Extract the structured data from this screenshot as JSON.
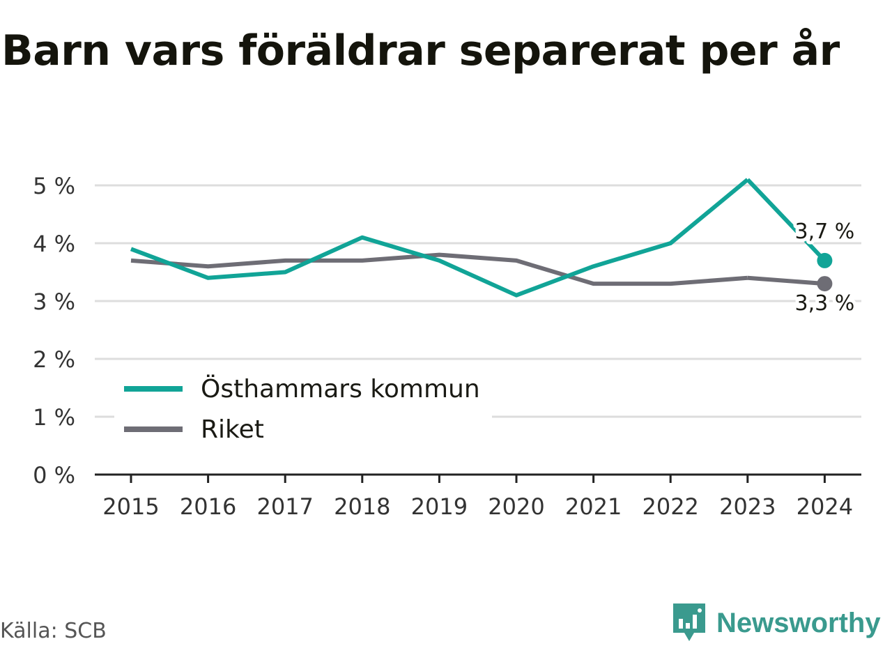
{
  "title": "Barn vars föräldrar separerat per år",
  "source": "Källa: SCB",
  "brand": "Newsworthy",
  "colors": {
    "teal": "#11a497",
    "gray": "#6e6d75",
    "grid": "#dddddd",
    "axis": "#222222",
    "brand": "#3a9a8e"
  },
  "chart_data": {
    "type": "line",
    "x": [
      "2015",
      "2016",
      "2017",
      "2018",
      "2019",
      "2020",
      "2021",
      "2022",
      "2023",
      "2024"
    ],
    "ylim": [
      0,
      5
    ],
    "yticks": [
      0,
      1,
      2,
      3,
      4,
      5
    ],
    "ytick_labels": [
      "0 %",
      "1 %",
      "2 %",
      "3 %",
      "4 %",
      "5 %"
    ],
    "grid": true,
    "legend_position": "bottom-left",
    "series": [
      {
        "name": "Östhammars kommun",
        "color": "#11a497",
        "values": [
          3.9,
          3.4,
          3.5,
          4.1,
          3.7,
          3.1,
          3.6,
          4.0,
          5.1,
          3.7
        ],
        "end_label": "3,7 %"
      },
      {
        "name": "Riket",
        "color": "#6e6d75",
        "values": [
          3.7,
          3.6,
          3.7,
          3.7,
          3.8,
          3.7,
          3.3,
          3.3,
          3.4,
          3.3
        ],
        "end_label": "3,3 %"
      }
    ]
  }
}
